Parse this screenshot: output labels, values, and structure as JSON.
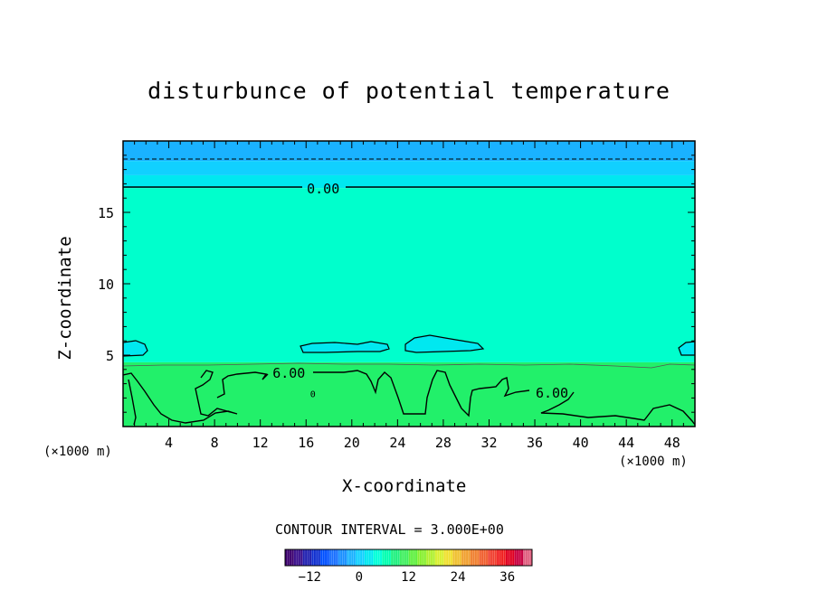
{
  "chart_data": {
    "type": "contour",
    "title": "disturbunce of potential temperature",
    "xlabel": "X-coordinate",
    "ylabel": "Z-coordinate",
    "x_unit_left": "(×1000 m)",
    "x_unit_right": "(×1000 m)",
    "xlim": [
      0,
      50
    ],
    "ylim": [
      0,
      20
    ],
    "x_ticks": [
      4,
      8,
      12,
      16,
      20,
      24,
      28,
      32,
      36,
      40,
      44,
      48
    ],
    "y_ticks": [
      5,
      10,
      15
    ],
    "contour_interval_label": "CONTOUR INTERVAL = 3.000E+00",
    "contour_labels": [
      {
        "text": "0.00",
        "x": 17.5,
        "z": 16.7
      },
      {
        "text": "6.00",
        "x": 14.5,
        "z": 3.8
      },
      {
        "text": "6.00",
        "x": 37.5,
        "z": 2.4
      },
      {
        "text": "0",
        "x": 16.6,
        "z": 2.3
      }
    ],
    "fill_bands": [
      {
        "z0": 18.6,
        "z1": 20.0,
        "color": "#1ab2ff"
      },
      {
        "z0": 17.6,
        "z1": 18.6,
        "color": "#11d0ff"
      },
      {
        "z0": 16.7,
        "z1": 17.6,
        "color": "#00e8f0"
      },
      {
        "z0": 4.5,
        "z1": 16.7,
        "color": "#00ffcc"
      },
      {
        "z0": 0.0,
        "z1": 4.5,
        "color": "#22f06a"
      }
    ],
    "colorbar": {
      "range": [
        -18,
        42
      ],
      "ticks": [
        -12,
        0,
        12,
        24,
        36
      ],
      "tick_labels": [
        "−12",
        "0",
        "12",
        "24",
        "36"
      ],
      "colors": [
        "#3c006e",
        "#3a108c",
        "#2020b0",
        "#1030d0",
        "#0050ff",
        "#1a70ff",
        "#1a90ff",
        "#1ab2ff",
        "#11d0ff",
        "#00e8f0",
        "#00ffd8",
        "#00ffb0",
        "#20f080",
        "#40f060",
        "#60f040",
        "#88f030",
        "#b0f030",
        "#d8f030",
        "#f0e030",
        "#f0c030",
        "#f0a030",
        "#f08030",
        "#f06030",
        "#f04030",
        "#f02020",
        "#e00020",
        "#c80040",
        "#e06080"
      ]
    }
  }
}
